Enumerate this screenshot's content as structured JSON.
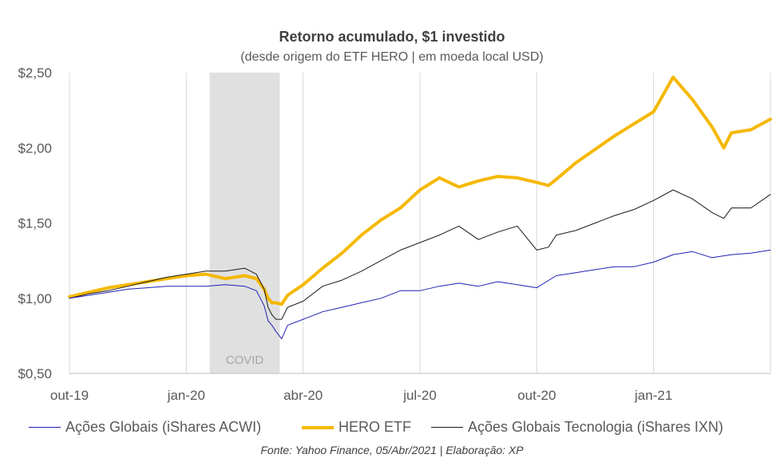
{
  "chart_data": {
    "type": "line",
    "title": "Retorno acumulado, $1 investido",
    "subtitle": "(desde origem do ETF HERO | em moeda local USD)",
    "source": "Fonte: Yahoo Finance, 05/Abr/2021 | Elaboração: XP",
    "ylim": [
      0.5,
      2.5
    ],
    "yticks": [
      0.5,
      1.0,
      1.5,
      2.0,
      2.5
    ],
    "ytick_labels": [
      "$0,50",
      "$1,00",
      "$1,50",
      "$2,00",
      "$2,50"
    ],
    "x_range": [
      0,
      18
    ],
    "xticks": [
      0,
      3,
      6,
      9,
      12,
      15
    ],
    "xtick_labels": [
      "out-19",
      "jan-20",
      "abr-20",
      "jul-20",
      "out-20",
      "jan-21"
    ],
    "grid": "vertical",
    "shaded_region": {
      "label": "COVID",
      "x_start": 3.6,
      "x_end": 5.4,
      "color": "#e0e0e0"
    },
    "legend_position": "bottom",
    "series": [
      {
        "name": "Ações Globais (iShares ACWI)",
        "color": "#1f1fb4",
        "width": 1,
        "x": [
          0.0,
          0.5,
          1.0,
          1.5,
          2.0,
          2.5,
          3.0,
          3.5,
          4.0,
          4.5,
          4.8,
          5.0,
          5.1,
          5.2,
          5.3,
          5.45,
          5.6,
          6.0,
          6.5,
          7.0,
          7.5,
          8.0,
          8.5,
          9.0,
          9.5,
          10.0,
          10.5,
          11.0,
          11.5,
          12.0,
          12.5,
          13.0,
          13.5,
          14.0,
          14.5,
          15.0,
          15.5,
          16.0,
          16.5,
          17.0,
          17.5,
          18.0
        ],
        "y": [
          1.0,
          1.02,
          1.04,
          1.06,
          1.07,
          1.08,
          1.08,
          1.08,
          1.09,
          1.08,
          1.05,
          0.95,
          0.85,
          0.82,
          0.78,
          0.73,
          0.82,
          0.86,
          0.91,
          0.94,
          0.97,
          1.0,
          1.05,
          1.05,
          1.08,
          1.1,
          1.08,
          1.11,
          1.09,
          1.07,
          1.15,
          1.17,
          1.19,
          1.21,
          1.21,
          1.24,
          1.29,
          1.31,
          1.27,
          1.29,
          1.3,
          1.32
        ]
      },
      {
        "name": "HERO ETF",
        "color": "#f5b800",
        "width": 4,
        "x": [
          0.0,
          0.5,
          1.0,
          1.5,
          2.0,
          2.5,
          3.0,
          3.5,
          4.0,
          4.5,
          4.8,
          5.0,
          5.1,
          5.2,
          5.3,
          5.45,
          5.6,
          6.0,
          6.5,
          7.0,
          7.5,
          8.0,
          8.5,
          9.0,
          9.5,
          10.0,
          10.5,
          11.0,
          11.5,
          12.0,
          12.3,
          12.5,
          13.0,
          13.5,
          14.0,
          14.5,
          15.0,
          15.5,
          16.0,
          16.5,
          16.8,
          17.0,
          17.5,
          18.0
        ],
        "y": [
          1.01,
          1.04,
          1.07,
          1.09,
          1.11,
          1.13,
          1.15,
          1.16,
          1.13,
          1.15,
          1.13,
          1.06,
          1.0,
          0.97,
          0.97,
          0.96,
          1.02,
          1.09,
          1.2,
          1.3,
          1.42,
          1.52,
          1.6,
          1.72,
          1.8,
          1.74,
          1.78,
          1.81,
          1.8,
          1.77,
          1.75,
          1.79,
          1.9,
          1.99,
          2.08,
          2.16,
          2.24,
          2.47,
          2.32,
          2.14,
          2.0,
          2.1,
          2.12,
          2.19
        ]
      },
      {
        "name": "Ações Globais Tecnologia (iShares IXN)",
        "color": "#1a1a1a",
        "width": 1,
        "x": [
          0.0,
          0.5,
          1.0,
          1.5,
          2.0,
          2.5,
          3.0,
          3.5,
          4.0,
          4.5,
          4.8,
          5.0,
          5.1,
          5.2,
          5.3,
          5.45,
          5.6,
          6.0,
          6.5,
          7.0,
          7.5,
          8.0,
          8.5,
          9.0,
          9.5,
          10.0,
          10.5,
          11.0,
          11.5,
          12.0,
          12.3,
          12.5,
          13.0,
          13.5,
          14.0,
          14.5,
          15.0,
          15.5,
          16.0,
          16.5,
          16.8,
          17.0,
          17.5,
          18.0
        ],
        "y": [
          1.0,
          1.03,
          1.05,
          1.08,
          1.11,
          1.14,
          1.16,
          1.18,
          1.18,
          1.2,
          1.16,
          1.06,
          0.94,
          0.89,
          0.86,
          0.86,
          0.94,
          0.98,
          1.08,
          1.12,
          1.18,
          1.25,
          1.32,
          1.37,
          1.42,
          1.48,
          1.39,
          1.44,
          1.48,
          1.32,
          1.34,
          1.42,
          1.45,
          1.5,
          1.55,
          1.59,
          1.65,
          1.72,
          1.66,
          1.57,
          1.53,
          1.6,
          1.6,
          1.69
        ]
      }
    ]
  }
}
